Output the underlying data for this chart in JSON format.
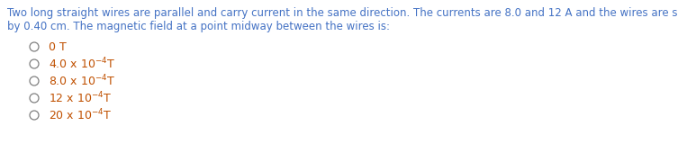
{
  "question_text_line1": "Two long straight wires are parallel and carry current in the same direction. The currents are 8.0 and 12 A and the wires are separated",
  "question_text_line2": "by 0.40 cm. The magnetic field at a point midway between the wires is:",
  "question_color": "#4472C4",
  "option_color": "#C05000",
  "circle_color": "#808080",
  "bg_color": "#ffffff",
  "fig_width": 7.53,
  "fig_height": 1.7,
  "dpi": 100,
  "question_fontsize": 8.5,
  "option_fontsize": 9.0
}
